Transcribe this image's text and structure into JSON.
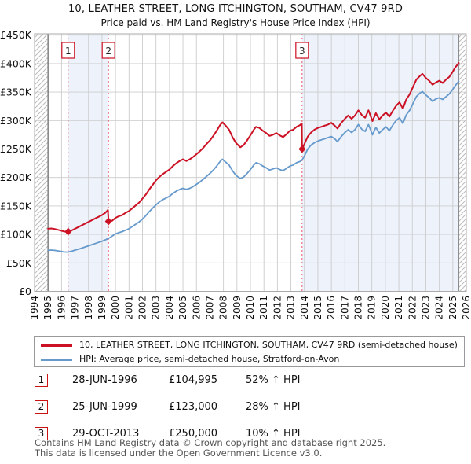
{
  "title": "10, LEATHER STREET, LONG ITCHINGTON, SOUTHAM, CV47 9RD",
  "subtitle": "Price paid vs. HM Land Registry's House Price Index (HPI)",
  "chart_data": {
    "type": "line",
    "title": "10, LEATHER STREET, LONG ITCHINGTON, SOUTHAM, CV47 9RD",
    "subtitle": "Price paid vs. HM Land Registry's House Price Index (HPI)",
    "xlabel": "",
    "ylabel": "Price (GBP)",
    "ylim": [
      0,
      450
    ],
    "ytick_step": 50,
    "ytick_labels": [
      "£0",
      "£50K",
      "£100K",
      "£150K",
      "£200K",
      "£250K",
      "£300K",
      "£350K",
      "£400K",
      "£450K"
    ],
    "xlim": [
      1994,
      2026
    ],
    "xticks": [
      1994,
      1995,
      1996,
      1997,
      1998,
      1999,
      2000,
      2001,
      2002,
      2003,
      2004,
      2005,
      2006,
      2007,
      2008,
      2009,
      2010,
      2011,
      2012,
      2013,
      2014,
      2015,
      2016,
      2017,
      2018,
      2019,
      2020,
      2021,
      2022,
      2023,
      2024,
      2025,
      2026
    ],
    "grid": true,
    "legend_position": "bottom",
    "units": "thousands of pounds",
    "hatched_regions": [
      [
        1994,
        1995
      ],
      [
        2025.45,
        2026
      ]
    ],
    "shaded_regions": [
      [
        1996.49,
        1999.48
      ],
      [
        2013.83,
        2025.45
      ]
    ],
    "markers": [
      {
        "label": "1",
        "year": 1996.49,
        "value": 105
      },
      {
        "label": "2",
        "year": 1999.48,
        "value": 123
      },
      {
        "label": "3",
        "year": 2013.83,
        "value": 250
      }
    ],
    "series": [
      {
        "name": "10, LEATHER STREET, LONG ITCHINGTON, SOUTHAM, CV47 9RD (semi-detached house)",
        "color": "#cc1124",
        "width": 2,
        "points": [
          [
            1995.0,
            110
          ],
          [
            1995.25,
            110.5
          ],
          [
            1995.5,
            109.5
          ],
          [
            1995.75,
            108
          ],
          [
            1996.0,
            106.5
          ],
          [
            1996.2,
            105
          ],
          [
            1996.49,
            105
          ],
          [
            1996.75,
            107
          ],
          [
            1997.0,
            110
          ],
          [
            1997.25,
            113
          ],
          [
            1997.5,
            116
          ],
          [
            1997.75,
            119
          ],
          [
            1998.0,
            122
          ],
          [
            1998.25,
            125
          ],
          [
            1998.5,
            128
          ],
          [
            1998.75,
            131
          ],
          [
            1999.0,
            134
          ],
          [
            1999.25,
            138
          ],
          [
            1999.44,
            143
          ],
          [
            1999.48,
            123
          ],
          [
            1999.75,
            124
          ],
          [
            2000.0,
            129
          ],
          [
            2000.25,
            132
          ],
          [
            2000.5,
            134
          ],
          [
            2000.75,
            138
          ],
          [
            2001.0,
            141
          ],
          [
            2001.25,
            146
          ],
          [
            2001.5,
            151
          ],
          [
            2001.75,
            156
          ],
          [
            2002.0,
            163
          ],
          [
            2002.25,
            170
          ],
          [
            2002.5,
            179
          ],
          [
            2002.75,
            187
          ],
          [
            2003.0,
            195
          ],
          [
            2003.25,
            201
          ],
          [
            2003.5,
            206
          ],
          [
            2003.75,
            210
          ],
          [
            2004.0,
            214
          ],
          [
            2004.25,
            220
          ],
          [
            2004.5,
            225
          ],
          [
            2004.75,
            229
          ],
          [
            2005.0,
            232
          ],
          [
            2005.25,
            229
          ],
          [
            2005.5,
            232
          ],
          [
            2005.75,
            236
          ],
          [
            2006.0,
            241
          ],
          [
            2006.25,
            246
          ],
          [
            2006.5,
            252
          ],
          [
            2006.75,
            259
          ],
          [
            2007.0,
            265
          ],
          [
            2007.25,
            273
          ],
          [
            2007.5,
            282
          ],
          [
            2007.75,
            292
          ],
          [
            2007.92,
            297
          ],
          [
            2008.17,
            291
          ],
          [
            2008.42,
            284
          ],
          [
            2008.67,
            271
          ],
          [
            2008.92,
            261
          ],
          [
            2009.25,
            253
          ],
          [
            2009.5,
            257
          ],
          [
            2009.75,
            265
          ],
          [
            2010.0,
            274
          ],
          [
            2010.25,
            284
          ],
          [
            2010.42,
            289
          ],
          [
            2010.67,
            287
          ],
          [
            2010.92,
            282
          ],
          [
            2011.17,
            278
          ],
          [
            2011.42,
            273
          ],
          [
            2011.67,
            275
          ],
          [
            2011.92,
            278
          ],
          [
            2012.17,
            274
          ],
          [
            2012.42,
            271
          ],
          [
            2012.67,
            276
          ],
          [
            2012.92,
            282
          ],
          [
            2013.17,
            284
          ],
          [
            2013.42,
            289
          ],
          [
            2013.67,
            292
          ],
          [
            2013.81,
            295
          ],
          [
            2013.83,
            250
          ],
          [
            2014.0,
            259
          ],
          [
            2014.25,
            272
          ],
          [
            2014.5,
            279
          ],
          [
            2014.75,
            284
          ],
          [
            2015.0,
            287
          ],
          [
            2015.25,
            289
          ],
          [
            2015.5,
            291
          ],
          [
            2015.75,
            293
          ],
          [
            2016.0,
            296
          ],
          [
            2016.25,
            291
          ],
          [
            2016.45,
            286
          ],
          [
            2016.7,
            295
          ],
          [
            2017.0,
            303
          ],
          [
            2017.25,
            309
          ],
          [
            2017.5,
            303
          ],
          [
            2017.75,
            309
          ],
          [
            2018.0,
            318
          ],
          [
            2018.25,
            310
          ],
          [
            2018.5,
            305
          ],
          [
            2018.75,
            318
          ],
          [
            2019.05,
            299
          ],
          [
            2019.3,
            313
          ],
          [
            2019.55,
            302
          ],
          [
            2019.8,
            309
          ],
          [
            2020.05,
            314
          ],
          [
            2020.3,
            307
          ],
          [
            2020.55,
            317
          ],
          [
            2020.8,
            326
          ],
          [
            2021.05,
            332
          ],
          [
            2021.3,
            321
          ],
          [
            2021.55,
            337
          ],
          [
            2021.8,
            346
          ],
          [
            2022.05,
            359
          ],
          [
            2022.3,
            372
          ],
          [
            2022.55,
            378
          ],
          [
            2022.75,
            382
          ],
          [
            2023.0,
            375
          ],
          [
            2023.25,
            370
          ],
          [
            2023.5,
            363
          ],
          [
            2023.75,
            367
          ],
          [
            2024.0,
            370
          ],
          [
            2024.25,
            366
          ],
          [
            2024.5,
            372
          ],
          [
            2024.75,
            377
          ],
          [
            2025.0,
            386
          ],
          [
            2025.2,
            394
          ],
          [
            2025.45,
            401
          ]
        ]
      },
      {
        "name": "HPI: Average price, semi-detached house, Stratford-on-Avon",
        "color": "#6699cc",
        "width": 1.8,
        "points": [
          [
            1995.0,
            72
          ],
          [
            1995.25,
            72.5
          ],
          [
            1995.5,
            72
          ],
          [
            1995.75,
            71
          ],
          [
            1996.0,
            70
          ],
          [
            1996.2,
            69
          ],
          [
            1996.49,
            69
          ],
          [
            1996.75,
            70.5
          ],
          [
            1997.0,
            72.5
          ],
          [
            1997.25,
            74
          ],
          [
            1997.5,
            76
          ],
          [
            1997.75,
            78
          ],
          [
            1998.0,
            80
          ],
          [
            1998.25,
            82
          ],
          [
            1998.5,
            84
          ],
          [
            1998.75,
            86
          ],
          [
            1999.0,
            88
          ],
          [
            1999.25,
            90.5
          ],
          [
            1999.48,
            93
          ],
          [
            1999.75,
            97
          ],
          [
            2000.0,
            101
          ],
          [
            2000.25,
            103
          ],
          [
            2000.5,
            105
          ],
          [
            2000.75,
            107.5
          ],
          [
            2001.0,
            110
          ],
          [
            2001.25,
            114
          ],
          [
            2001.5,
            118
          ],
          [
            2001.75,
            122
          ],
          [
            2002.0,
            127
          ],
          [
            2002.25,
            133
          ],
          [
            2002.5,
            140
          ],
          [
            2002.75,
            146
          ],
          [
            2003.0,
            152
          ],
          [
            2003.25,
            157
          ],
          [
            2003.5,
            161
          ],
          [
            2003.75,
            164
          ],
          [
            2004.0,
            167
          ],
          [
            2004.25,
            172
          ],
          [
            2004.5,
            176
          ],
          [
            2004.75,
            179
          ],
          [
            2005.0,
            181
          ],
          [
            2005.25,
            179
          ],
          [
            2005.5,
            181
          ],
          [
            2005.75,
            184
          ],
          [
            2006.0,
            188
          ],
          [
            2006.25,
            192
          ],
          [
            2006.5,
            197
          ],
          [
            2006.75,
            202
          ],
          [
            2007.0,
            207
          ],
          [
            2007.25,
            213
          ],
          [
            2007.5,
            220
          ],
          [
            2007.75,
            228
          ],
          [
            2007.92,
            232
          ],
          [
            2008.17,
            227
          ],
          [
            2008.42,
            222
          ],
          [
            2008.67,
            212
          ],
          [
            2008.92,
            204
          ],
          [
            2009.25,
            198
          ],
          [
            2009.5,
            201
          ],
          [
            2009.75,
            207
          ],
          [
            2010.0,
            214
          ],
          [
            2010.25,
            222
          ],
          [
            2010.42,
            226
          ],
          [
            2010.67,
            224
          ],
          [
            2010.92,
            220
          ],
          [
            2011.17,
            217
          ],
          [
            2011.42,
            213
          ],
          [
            2011.67,
            215
          ],
          [
            2011.92,
            217
          ],
          [
            2012.17,
            214
          ],
          [
            2012.42,
            212
          ],
          [
            2012.67,
            216
          ],
          [
            2012.92,
            220
          ],
          [
            2013.17,
            222
          ],
          [
            2013.42,
            226
          ],
          [
            2013.67,
            228
          ],
          [
            2013.83,
            231
          ],
          [
            2014.0,
            238
          ],
          [
            2014.25,
            250
          ],
          [
            2014.5,
            257
          ],
          [
            2014.75,
            261
          ],
          [
            2015.0,
            264
          ],
          [
            2015.25,
            266
          ],
          [
            2015.5,
            268
          ],
          [
            2015.75,
            270
          ],
          [
            2016.0,
            272
          ],
          [
            2016.25,
            268
          ],
          [
            2016.45,
            263
          ],
          [
            2016.7,
            271
          ],
          [
            2017.0,
            279
          ],
          [
            2017.25,
            284
          ],
          [
            2017.5,
            279
          ],
          [
            2017.75,
            284
          ],
          [
            2018.0,
            293
          ],
          [
            2018.25,
            285
          ],
          [
            2018.5,
            281
          ],
          [
            2018.75,
            293
          ],
          [
            2019.05,
            275
          ],
          [
            2019.3,
            288
          ],
          [
            2019.55,
            278
          ],
          [
            2019.8,
            284
          ],
          [
            2020.05,
            289
          ],
          [
            2020.3,
            282
          ],
          [
            2020.55,
            292
          ],
          [
            2020.8,
            300
          ],
          [
            2021.05,
            305
          ],
          [
            2021.3,
            295
          ],
          [
            2021.55,
            310
          ],
          [
            2021.8,
            318
          ],
          [
            2022.05,
            330
          ],
          [
            2022.3,
            342
          ],
          [
            2022.55,
            348
          ],
          [
            2022.75,
            351
          ],
          [
            2023.0,
            345
          ],
          [
            2023.25,
            340
          ],
          [
            2023.5,
            334
          ],
          [
            2023.75,
            338
          ],
          [
            2024.0,
            340
          ],
          [
            2024.25,
            337
          ],
          [
            2024.5,
            342
          ],
          [
            2024.75,
            347
          ],
          [
            2025.0,
            355
          ],
          [
            2025.2,
            362
          ],
          [
            2025.45,
            369
          ]
        ]
      }
    ],
    "colors": {
      "grid": "#cccccc",
      "plot_border": "#aaaaaa",
      "shaded_region": "#edf2fb",
      "hatch_line": "#bbbbbb",
      "hatch_boundary": "#888888",
      "marker_dashed_line": "#e8556a",
      "marker_box_border": "#cc1124"
    }
  },
  "legend": {
    "items": [
      {
        "label": "10, LEATHER STREET, LONG ITCHINGTON, SOUTHAM, CV47 9RD (semi-detached house)",
        "color": "#cc1124"
      },
      {
        "label": "HPI: Average price, semi-detached house, Stratford-on-Avon",
        "color": "#6699cc"
      }
    ]
  },
  "transactions": [
    {
      "num": "1",
      "date": "28-JUN-1996",
      "price": "£104,995",
      "hpi": "52% ↑ HPI"
    },
    {
      "num": "2",
      "date": "25-JUN-1999",
      "price": "£123,000",
      "hpi": "28% ↑ HPI"
    },
    {
      "num": "3",
      "date": "29-OCT-2013",
      "price": "£250,000",
      "hpi": "10% ↑ HPI"
    }
  ],
  "footer": {
    "line1": "Contains HM Land Registry data © Crown copyright and database right 2025.",
    "line2": "This data is licensed under the Open Government Licence v3.0."
  }
}
